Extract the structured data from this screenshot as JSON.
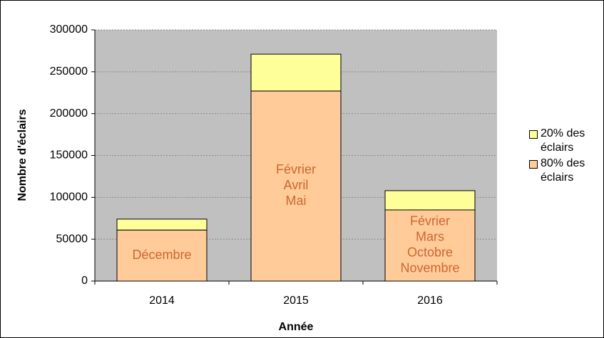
{
  "chart_data": {
    "type": "stacked_bar",
    "x_label": "Année",
    "y_label": "Nombre d'éclairs",
    "categories": [
      "2014",
      "2015",
      "2016"
    ],
    "series": [
      {
        "name": "80% des éclairs",
        "color": "#ffcc99",
        "values": [
          61000,
          227000,
          85000
        ]
      },
      {
        "name": "20% des éclairs",
        "color": "#ffff99",
        "values": [
          13000,
          44000,
          23000
        ]
      }
    ],
    "bar_labels": [
      [
        "Décembre"
      ],
      [
        "Février",
        "Avril",
        "Mai"
      ],
      [
        "Février",
        "Mars",
        "Octobre",
        "Novembre"
      ]
    ],
    "bar_label_color": "#cc6633",
    "ylim": [
      0,
      300000
    ],
    "yticks": [
      0,
      50000,
      100000,
      150000,
      200000,
      250000,
      300000
    ],
    "grid": true,
    "plot_background": "#c0c0c0"
  }
}
